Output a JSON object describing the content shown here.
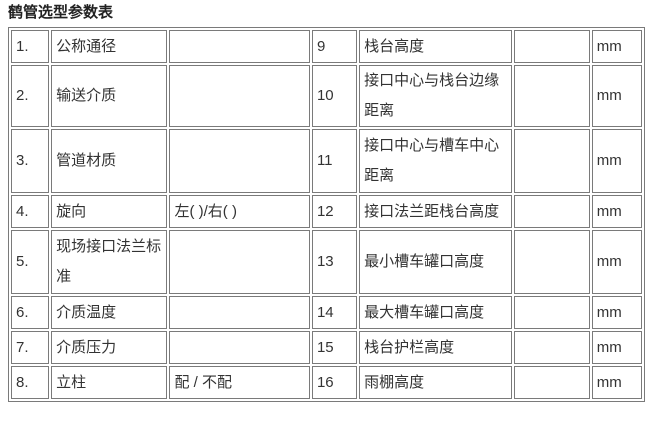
{
  "page": {
    "title": "鹤管选型参数表"
  },
  "colors": {
    "border": "#7a7a7a",
    "text": "#333333",
    "background": "#ffffff"
  },
  "table": {
    "rows": [
      {
        "no_left": "1.",
        "label_left": "公称通径",
        "value_left": "",
        "no_right": "9",
        "label_right": "栈台高度",
        "value_right": "",
        "unit": "mm"
      },
      {
        "no_left": "2.",
        "label_left": "输送介质",
        "value_left": "",
        "no_right": "10",
        "label_right": "接口中心与栈台边缘距离",
        "value_right": "",
        "unit": "mm"
      },
      {
        "no_left": "3.",
        "label_left": "管道材质",
        "value_left": "",
        "no_right": "11",
        "label_right": "接口中心与槽车中心距离",
        "value_right": "",
        "unit": "mm"
      },
      {
        "no_left": "4.",
        "label_left": "旋向",
        "value_left": "左( )/右( )",
        "no_right": "12",
        "label_right": "接口法兰距栈台高度",
        "value_right": "",
        "unit": "mm"
      },
      {
        "no_left": "5.",
        "label_left": "现场接口法兰标准",
        "value_left": "",
        "no_right": "13",
        "label_right": "最小槽车罐口高度",
        "value_right": "",
        "unit": "mm"
      },
      {
        "no_left": "6.",
        "label_left": "介质温度",
        "value_left": "",
        "no_right": "14",
        "label_right": "最大槽车罐口高度",
        "value_right": "",
        "unit": "mm"
      },
      {
        "no_left": "7.",
        "label_left": "介质压力",
        "value_left": "",
        "no_right": "15",
        "label_right": "栈台护栏高度",
        "value_right": "",
        "unit": "mm"
      },
      {
        "no_left": "8.",
        "label_left": "立柱",
        "value_left": "配 / 不配",
        "no_right": "16",
        "label_right": "雨棚高度",
        "value_right": "",
        "unit": "mm"
      }
    ]
  }
}
